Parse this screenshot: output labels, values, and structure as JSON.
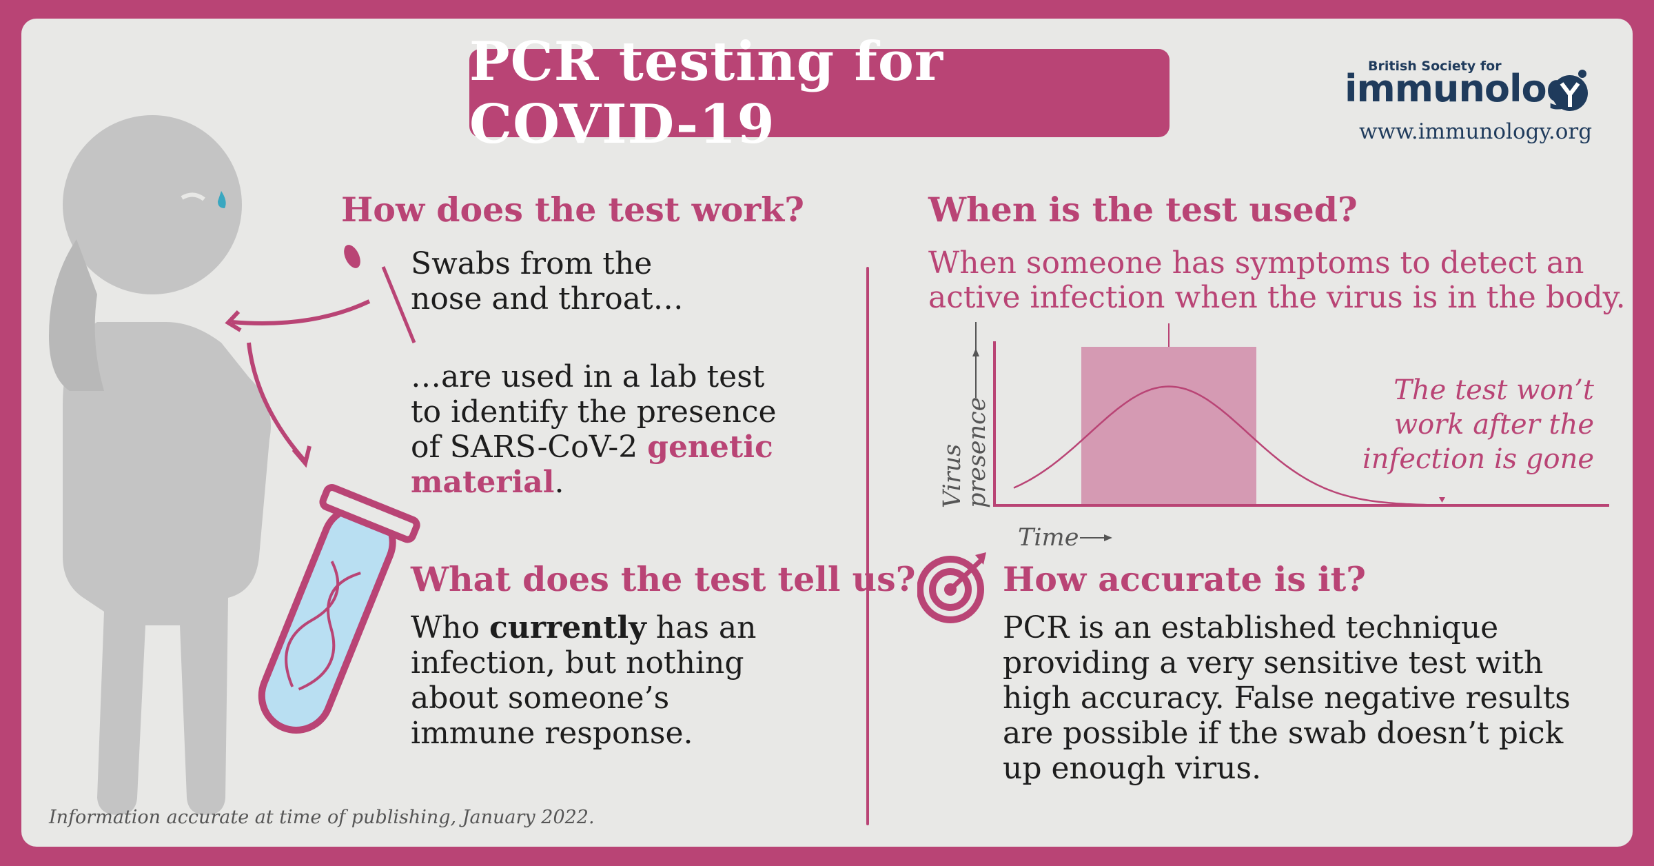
{
  "title": "PCR testing for COVID-19",
  "logo": {
    "small_text": "British Society for",
    "big_text": "immunolog",
    "url": "www.immunology.org",
    "brand_color": "#1f3b5c"
  },
  "colors": {
    "accent": "#b94475",
    "panel": "#e8e8e6",
    "figure": "#c4c4c4",
    "tube_liquid": "#b9dff2"
  },
  "how": {
    "heading": "How does the test work?",
    "swab_lines": [
      "Swabs from the",
      "nose and throat…"
    ],
    "lab_line1": "…are used in a lab test",
    "lab_line2": "to identify the presence",
    "lab_line3_plain": "of SARS-CoV-2 ",
    "lab_line3_pink": "genetic",
    "lab_line4_pink": "material",
    "lab_line4_end": "."
  },
  "tell": {
    "heading": "What does the test tell us?",
    "line1_a": "Who ",
    "line1_bold": "currently",
    "line1_b": " has an",
    "line2": "infection, but nothing",
    "line3": "about someone’s",
    "line4": "immune response."
  },
  "used": {
    "heading": "When is the test used?",
    "line1": "When someone has symptoms to detect an",
    "line2": "active infection when the virus is in the body."
  },
  "chart_data": {
    "type": "area",
    "ylabel_line1": "Virus",
    "ylabel_line2": "presence",
    "xlabel": "Time",
    "curve_peak_fraction": 0.75,
    "note_lines": [
      "The test won’t",
      "work after the",
      "infection is gone"
    ]
  },
  "accuracy": {
    "heading": "How accurate is it?",
    "lines": [
      "PCR is an established technique",
      "providing a very sensitive test with",
      "high accuracy. False negative results",
      "are possible if the swab doesn’t pick",
      "up enough virus."
    ]
  },
  "footer": "Information accurate at time of publishing, January 2022."
}
